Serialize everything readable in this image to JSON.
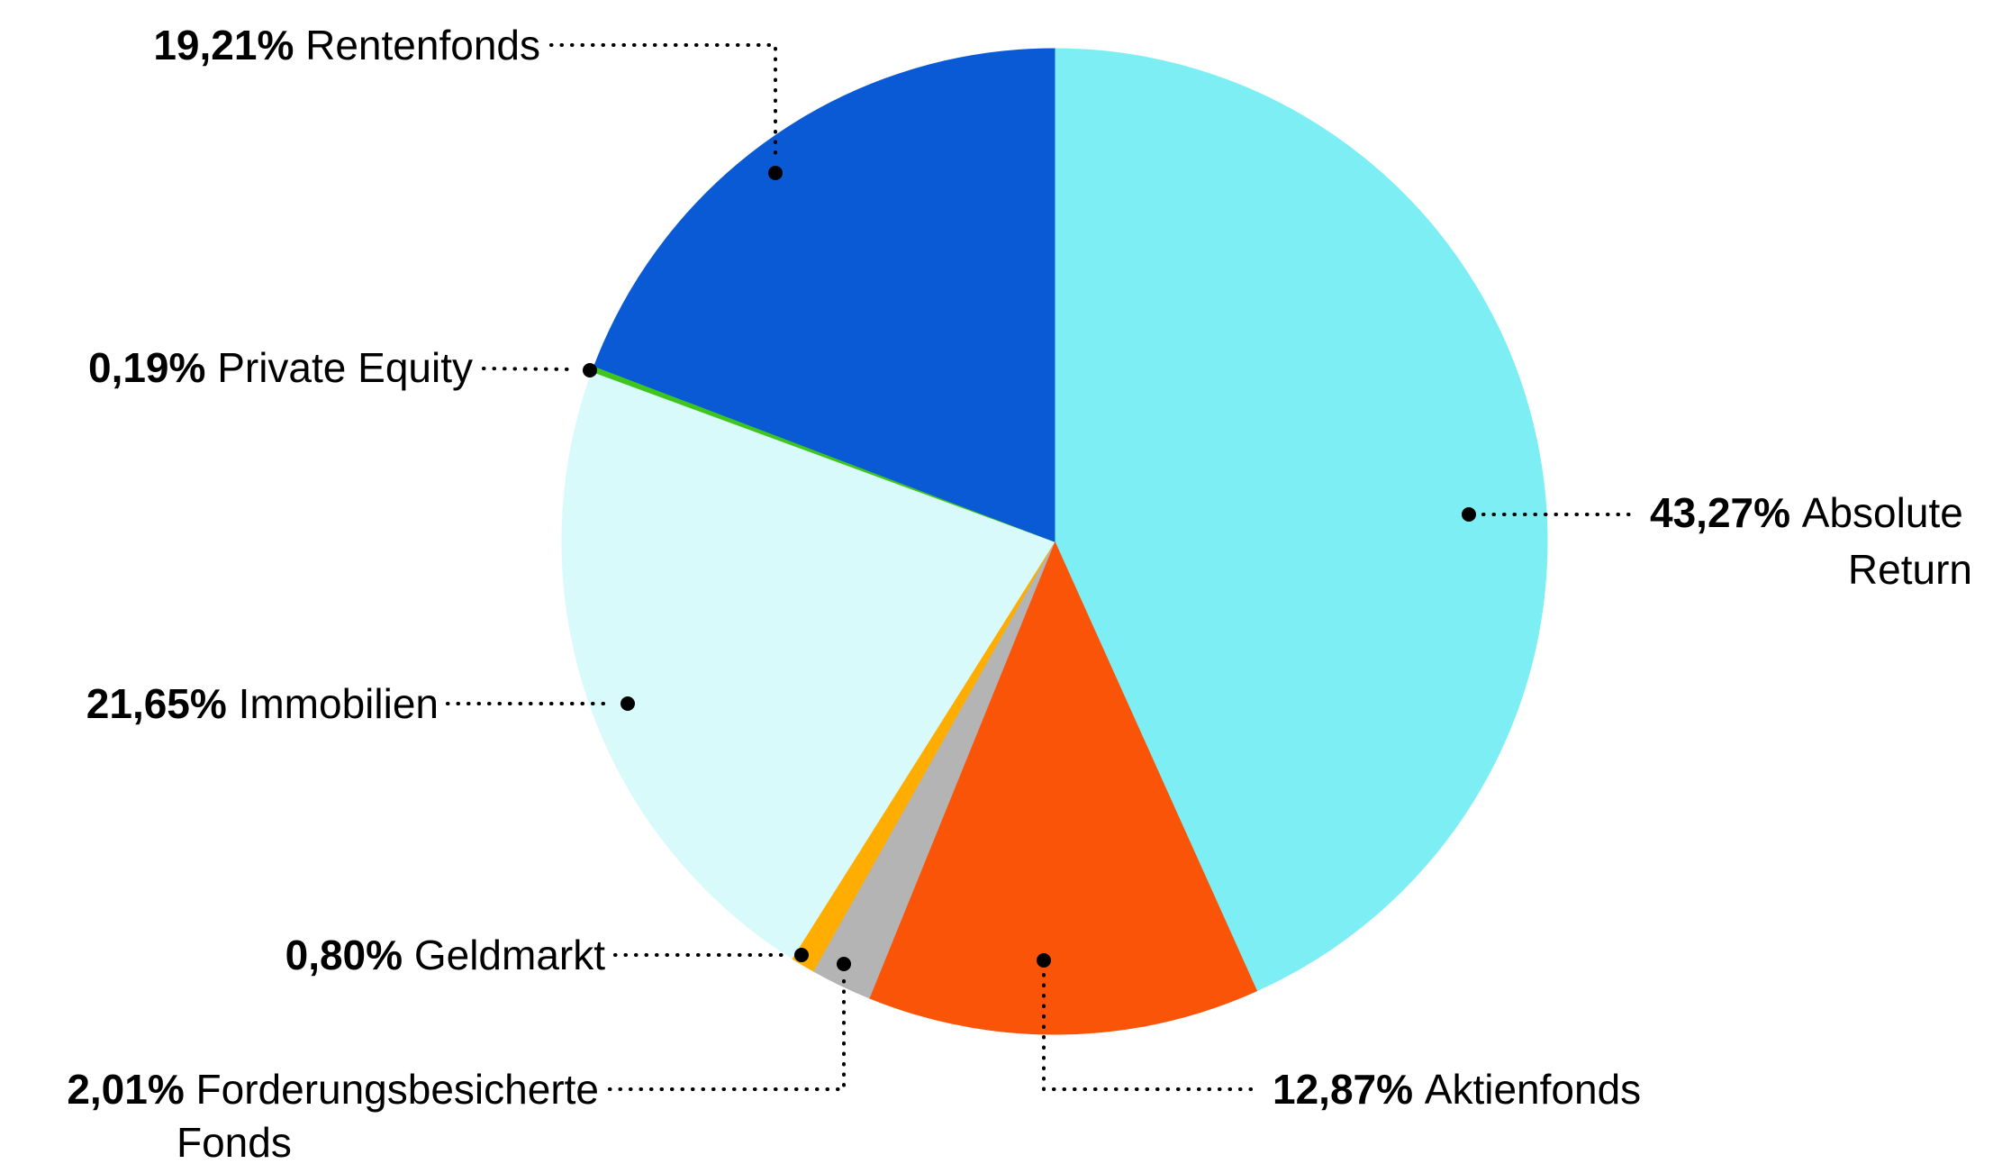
{
  "page": {
    "background": "#FFFFFF",
    "text_color": "#000000",
    "leader_color": "#000000"
  },
  "chart_data": {
    "type": "pie",
    "title": "",
    "start_angle_deg_from_top": 0,
    "direction": "clockwise",
    "legend": "leader-line labels with dotted connectors",
    "value_suffix": "%",
    "slices": [
      {
        "id": "absolute-return",
        "label": "Absolute Return",
        "pct_label": "43,27%",
        "value": 43.27,
        "color": "#7DEFF4",
        "label_lines": [
          "Absolute",
          "Return"
        ]
      },
      {
        "id": "aktienfonds",
        "label": "Aktienfonds",
        "pct_label": "12,87%",
        "value": 12.87,
        "color": "#FA5408",
        "label_lines": [
          "Aktienfonds"
        ]
      },
      {
        "id": "forderungsbesicherte-fonds",
        "label": "Forderungsbesicherte Fonds",
        "pct_label": "2,01%",
        "value": 2.01,
        "color": "#B4B4B4",
        "label_lines": [
          "Forderungsbesicherte",
          "Fonds"
        ]
      },
      {
        "id": "geldmarkt",
        "label": "Geldmarkt",
        "pct_label": "0,80%",
        "value": 0.8,
        "color": "#FFAD00",
        "label_lines": [
          "Geldmarkt"
        ]
      },
      {
        "id": "immobilien",
        "label": "Immobilien",
        "pct_label": "21,65%",
        "value": 21.65,
        "color": "#D9FAFA",
        "label_lines": [
          "Immobilien"
        ]
      },
      {
        "id": "private-equity",
        "label": "Private Equity",
        "pct_label": "0,19%",
        "value": 0.19,
        "color": "#3EC61F",
        "label_lines": [
          "Private Equity"
        ]
      },
      {
        "id": "rentenfonds",
        "label": "Rentenfonds",
        "pct_label": "19,21%",
        "value": 19.21,
        "color": "#0A5AD5",
        "label_lines": [
          "Rentenfonds"
        ]
      }
    ]
  }
}
